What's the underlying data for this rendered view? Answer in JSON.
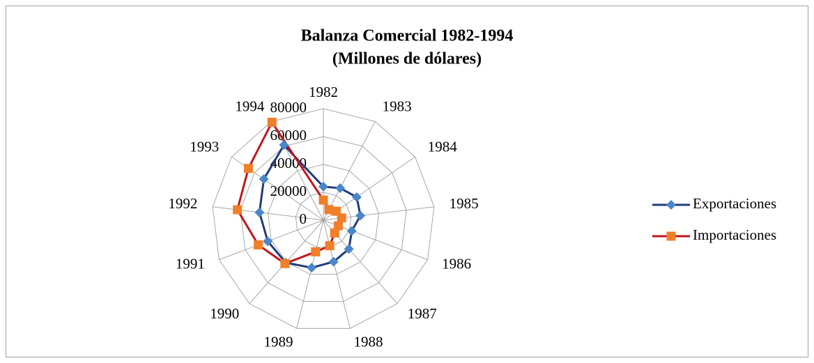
{
  "chart_data": {
    "type": "radar",
    "title": "Balanza Comercial 1982-1994",
    "subtitle": "(Millones de dólares)",
    "categories": [
      "1982",
      "1983",
      "1984",
      "1985",
      "1986",
      "1987",
      "1988",
      "1989",
      "1990",
      "1991",
      "1992",
      "1993",
      "1994"
    ],
    "series": [
      {
        "name": "Exportaciones",
        "color": "#1f3c7a",
        "marker_color": "#4a86c8",
        "marker": "diamond",
        "values": [
          24055,
          25953,
          29100,
          26757,
          21804,
          27600,
          30691,
          35171,
          40711,
          42688,
          46196,
          51886,
          60882
        ]
      },
      {
        "name": "Importaciones",
        "color": "#c0161d",
        "marker_color": "#f07f2a",
        "marker": "square",
        "values": [
          14437,
          8551,
          11254,
          13212,
          11432,
          12223,
          18898,
          23410,
          41593,
          49967,
          62129,
          65367,
          79346
        ]
      }
    ],
    "ylim": [
      0,
      80000
    ],
    "yticks": [
      0,
      20000,
      40000,
      60000,
      80000
    ],
    "grid": true,
    "legend": "right"
  }
}
